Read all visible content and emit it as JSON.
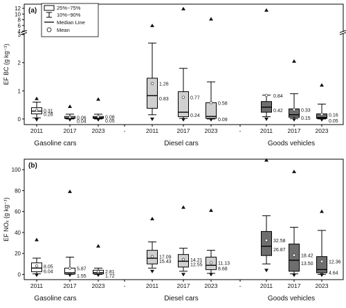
{
  "chart_data": [
    {
      "type": "box",
      "panel_label": "(a)",
      "ylabel": "EF BC (g kg⁻¹)",
      "y_axis": {
        "broken": true,
        "lower": {
          "range": [
            -0.2,
            3
          ],
          "ticks": [
            0,
            1,
            2,
            3
          ]
        },
        "upper": {
          "range": [
            4,
            12
          ],
          "ticks": [
            4,
            6,
            8,
            10,
            12
          ]
        }
      },
      "legend": {
        "placement": "top-left",
        "items": [
          "25%~75%",
          "10%~90%",
          "Median Line",
          "Mean"
        ]
      },
      "groups": [
        {
          "name": "Gasoline cars",
          "color": "#ffffff",
          "boxes": [
            {
              "year": "2011",
              "q1": 0.18,
              "median": 0.28,
              "q3": 0.4,
              "p10": 0.04,
              "p90": 0.6,
              "mean": 0.31,
              "min": -0.02,
              "max": 0.72,
              "labels": [
                "0.31",
                "0.28"
              ]
            },
            {
              "year": "2017",
              "q1": 0.02,
              "median": 0.04,
              "q3": 0.09,
              "p10": 0.0,
              "p90": 0.17,
              "mean": 0.06,
              "min": -0.02,
              "max": 0.44,
              "labels": [
                "0.06",
                "0.04"
              ]
            },
            {
              "year": "2023",
              "q1": 0.02,
              "median": 0.05,
              "q3": 0.09,
              "p10": 0.0,
              "p90": 0.17,
              "mean": 0.08,
              "min": -0.02,
              "max": 0.7,
              "labels": [
                "0.08",
                "0.05"
              ]
            }
          ]
        },
        {
          "name": "Diesel cars",
          "color": "#d0d0d0",
          "boxes": [
            {
              "year": "2011",
              "q1": 0.38,
              "median": 0.83,
              "q3": 1.45,
              "p10": 0.15,
              "p90": 2.7,
              "mean": 1.26,
              "min": 0.0,
              "max": 5.9,
              "labels": [
                "1.26",
                "0.83"
              ]
            },
            {
              "year": "2017",
              "q1": 0.08,
              "median": 0.24,
              "q3": 0.97,
              "p10": 0.02,
              "p90": 1.8,
              "mean": 0.77,
              "min": -0.02,
              "max": 11.8,
              "labels": [
                "0.77",
                "0.24"
              ]
            },
            {
              "year": "2023",
              "q1": 0.02,
              "median": 0.09,
              "q3": 0.58,
              "p10": 0.0,
              "p90": 1.32,
              "mean": 0.58,
              "min": -0.02,
              "max": 8.2,
              "labels": [
                "0.58",
                "0.09"
              ]
            }
          ]
        },
        {
          "name": "Goods vehicles",
          "color": "#6e6e6e",
          "boxes": [
            {
              "year": "2011",
              "q1": 0.24,
              "median": 0.42,
              "q3": 0.62,
              "p10": 0.08,
              "p90": 0.85,
              "mean": 0.84,
              "min": 0.0,
              "max": 11.3,
              "labels": [
                "0.84",
                "0.42"
              ]
            },
            {
              "year": "2017",
              "q1": 0.06,
              "median": 0.15,
              "q3": 0.36,
              "p10": 0.01,
              "p90": 0.9,
              "mean": 0.33,
              "min": -0.02,
              "max": 2.05,
              "labels": [
                "0.33",
                "0.15"
              ]
            },
            {
              "year": "2023",
              "q1": 0.02,
              "median": 0.05,
              "q3": 0.18,
              "p10": 0.0,
              "p90": 0.53,
              "mean": 0.16,
              "min": -0.02,
              "max": 1.2,
              "labels": [
                "0.16",
                "0.05"
              ]
            }
          ]
        }
      ]
    },
    {
      "type": "box",
      "panel_label": "(b)",
      "ylabel": "EF NOₓ (g kg⁻¹)",
      "ylim": [
        -5,
        110
      ],
      "yticks": [
        0,
        20,
        40,
        60,
        80,
        100
      ],
      "groups": [
        {
          "name": "Gasoline cars",
          "color": "#ffffff",
          "boxes": [
            {
              "year": "2011",
              "q1": 2.5,
              "median": 6.04,
              "q3": 11.0,
              "p10": 0.5,
              "p90": 15.5,
              "mean": 8.05,
              "min": -0.5,
              "max": 33.0,
              "labels": [
                "8.05",
                "6.04"
              ]
            },
            {
              "year": "2017",
              "q1": 0.3,
              "median": 1.55,
              "q3": 6.0,
              "p10": 0.0,
              "p90": 16.5,
              "mean": 5.87,
              "min": -0.5,
              "max": 79.0,
              "labels": [
                "5.87",
                "1.55"
              ]
            },
            {
              "year": "2023",
              "q1": 0.5,
              "median": 1.72,
              "q3": 4.0,
              "p10": 0.0,
              "p90": 6.0,
              "mean": 2.81,
              "min": -0.5,
              "max": 27.0,
              "labels": [
                "2.81",
                "1.72"
              ]
            }
          ]
        },
        {
          "name": "Diesel cars",
          "color": "#d0d0d0",
          "boxes": [
            {
              "year": "2011",
              "q1": 10.0,
              "median": 15.43,
              "q3": 23.0,
              "p10": 6.0,
              "p90": 31.0,
              "mean": 17.09,
              "min": 3.0,
              "max": 53.0,
              "labels": [
                "17.09",
                "15.43"
              ]
            },
            {
              "year": "2017",
              "q1": 7.0,
              "median": 12.55,
              "q3": 19.0,
              "p10": 3.0,
              "p90": 25.0,
              "mean": 14.21,
              "min": 0.0,
              "max": 64.0,
              "labels": [
                "14.21",
                "12.55"
              ]
            },
            {
              "year": "2023",
              "q1": 4.5,
              "median": 8.68,
              "q3": 16.5,
              "p10": 1.0,
              "p90": 23.0,
              "mean": 11.13,
              "min": 0.0,
              "max": 61.0,
              "labels": [
                "11.13",
                "8.68"
              ]
            }
          ]
        },
        {
          "name": "Goods vehicles",
          "color": "#6e6e6e",
          "boxes": [
            {
              "year": "2011",
              "q1": 18.0,
              "median": 26.87,
              "q3": 41.0,
              "p10": 10.0,
              "p90": 56.0,
              "mean": 32.58,
              "min": 4.0,
              "max": 109.0,
              "labels": [
                "32.58",
                "26.87"
              ]
            },
            {
              "year": "2017",
              "q1": 3.0,
              "median": 13.5,
              "q3": 29.0,
              "p10": 0.5,
              "p90": 45.0,
              "mean": 18.42,
              "min": -0.5,
              "max": 98.0,
              "labels": [
                "18.42",
                "13.50"
              ]
            },
            {
              "year": "2023",
              "q1": 1.5,
              "median": 4.64,
              "q3": 17.0,
              "p10": 0.0,
              "p90": 42.0,
              "mean": 12.36,
              "min": -0.5,
              "max": 60.0,
              "labels": [
                "12.36",
                "4.64"
              ]
            }
          ]
        }
      ]
    }
  ]
}
